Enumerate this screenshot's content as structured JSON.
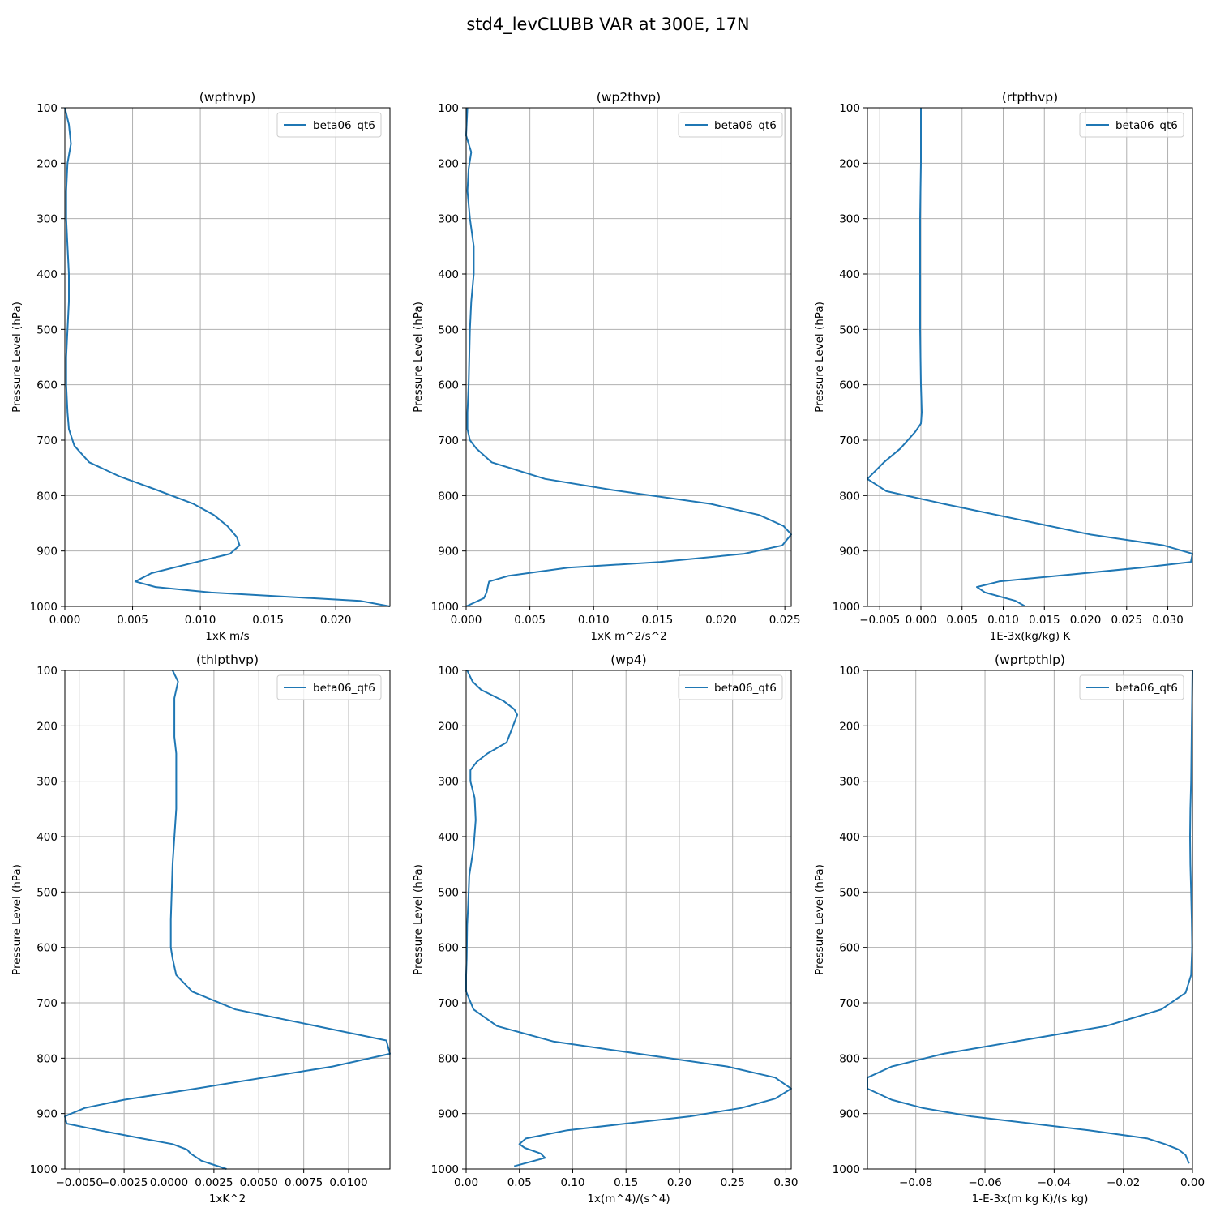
{
  "figure_title": "std4_levCLUBB VAR at 300E, 17N",
  "series_color": "#1f77b4",
  "chart_data": [
    {
      "type": "line",
      "title": "(wpthvp)",
      "xlabel": "1xK m/s",
      "ylabel": "Pressure Level (hPa)",
      "legend": "beta06_qt6",
      "legend_loc": "upper right",
      "grid": true,
      "xlim": [
        0,
        0.024
      ],
      "ylim": [
        1000,
        100
      ],
      "xticks": [
        0,
        0.005,
        0.01,
        0.015,
        0.02
      ],
      "xtick_labels": [
        "0.000",
        "0.005",
        "0.010",
        "0.015",
        "0.020"
      ],
      "yticks": [
        100,
        200,
        300,
        400,
        500,
        600,
        700,
        800,
        900,
        1000
      ],
      "ytick_labels": [
        "100",
        "200",
        "300",
        "400",
        "500",
        "600",
        "700",
        "800",
        "900",
        "1000"
      ],
      "x": [
        0.0,
        0.0003,
        0.00045,
        0.0002,
        0.0001,
        0.0001,
        0.0002,
        0.0003,
        0.0003,
        0.0002,
        0.0001,
        0.0001,
        0.0002,
        0.0003,
        0.0007,
        0.0018,
        0.004,
        0.0068,
        0.0095,
        0.011,
        0.012,
        0.0127,
        0.0129,
        0.0122,
        0.0097,
        0.0064,
        0.0052,
        0.0067,
        0.0108,
        0.0218,
        0.024
      ],
      "y": [
        100,
        130,
        165,
        200,
        250,
        300,
        350,
        400,
        450,
        500,
        550,
        600,
        650,
        680,
        710,
        740,
        765,
        790,
        815,
        835,
        855,
        875,
        890,
        905,
        920,
        940,
        955,
        965,
        975,
        990,
        1000
      ]
    },
    {
      "type": "line",
      "title": "(wp2thvp)",
      "xlabel": "1xK m^2/s^2",
      "ylabel": "Pressure Level (hPa)",
      "legend": "beta06_qt6",
      "legend_loc": "upper right",
      "grid": true,
      "xlim": [
        0,
        0.0255
      ],
      "ylim": [
        1000,
        100
      ],
      "xticks": [
        0,
        0.005,
        0.01,
        0.015,
        0.02,
        0.025
      ],
      "xtick_labels": [
        "0.000",
        "0.005",
        "0.010",
        "0.015",
        "0.020",
        "0.025"
      ],
      "yticks": [
        100,
        200,
        300,
        400,
        500,
        600,
        700,
        800,
        900,
        1000
      ],
      "ytick_labels": [
        "100",
        "200",
        "300",
        "400",
        "500",
        "600",
        "700",
        "800",
        "900",
        "1000"
      ],
      "x": [
        0.0001,
        0.0,
        0.0004,
        0.0002,
        0.0001,
        0.0003,
        0.0006,
        0.0006,
        0.0004,
        0.0003,
        0.0002,
        0.0001,
        0.0001,
        0.0003,
        0.0008,
        0.002,
        0.0062,
        0.0115,
        0.0192,
        0.023,
        0.0249,
        0.0255,
        0.0248,
        0.0218,
        0.0152,
        0.008,
        0.0033,
        0.0018,
        0.0017,
        0.0016,
        0.0014,
        0.0
      ],
      "y": [
        100,
        150,
        180,
        210,
        250,
        300,
        350,
        400,
        450,
        500,
        600,
        650,
        680,
        700,
        715,
        740,
        770,
        790,
        815,
        835,
        855,
        870,
        890,
        905,
        920,
        930,
        945,
        955,
        965,
        975,
        985,
        1000
      ]
    },
    {
      "type": "line",
      "title": "(rtpthvp)",
      "xlabel": "1E-3x(kg/kg) K",
      "ylabel": "Pressure Level (hPa)",
      "legend": "beta06_qt6",
      "legend_loc": "upper right",
      "grid": true,
      "xlim": [
        -0.0065,
        0.033
      ],
      "ylim": [
        1000,
        100
      ],
      "xticks": [
        -0.005,
        0,
        0.005,
        0.01,
        0.015,
        0.02,
        0.025,
        0.03
      ],
      "xtick_labels": [
        "−0.005",
        "0.000",
        "0.005",
        "0.010",
        "0.015",
        "0.020",
        "0.025",
        "0.030"
      ],
      "yticks": [
        100,
        200,
        300,
        400,
        500,
        600,
        700,
        800,
        900,
        1000
      ],
      "ytick_labels": [
        "100",
        "200",
        "300",
        "400",
        "500",
        "600",
        "700",
        "800",
        "900",
        "1000"
      ],
      "x": [
        0.0,
        0.0,
        -0.0001,
        -0.0001,
        -0.0001,
        0.0,
        0.0001,
        0.0,
        -0.0007,
        -0.0025,
        -0.0045,
        -0.0065,
        -0.0042,
        0.0028,
        0.0205,
        0.0295,
        0.033,
        0.0328,
        0.0268,
        0.0095,
        0.0068,
        0.0078,
        0.0115,
        0.0127
      ],
      "y": [
        100,
        200,
        300,
        400,
        500,
        600,
        650,
        670,
        685,
        715,
        740,
        770,
        792,
        815,
        870,
        890,
        905,
        920,
        930,
        955,
        965,
        975,
        990,
        1000
      ]
    },
    {
      "type": "line",
      "title": "(thlpthvp)",
      "xlabel": "1xK^2",
      "ylabel": "Pressure Level (hPa)",
      "legend": "beta06_qt6",
      "legend_loc": "upper right",
      "grid": true,
      "xlim": [
        -0.0058,
        0.0123
      ],
      "ylim": [
        1000,
        100
      ],
      "xticks": [
        -0.005,
        -0.0025,
        0,
        0.0025,
        0.005,
        0.0075,
        0.01
      ],
      "xtick_labels": [
        "−0.0050",
        "−0.0025",
        "0.0000",
        "0.0025",
        "0.0050",
        "0.0075",
        "0.0100"
      ],
      "yticks": [
        100,
        200,
        300,
        400,
        500,
        600,
        700,
        800,
        900,
        1000
      ],
      "ytick_labels": [
        "100",
        "200",
        "300",
        "400",
        "500",
        "600",
        "700",
        "800",
        "900",
        "1000"
      ],
      "x": [
        0.0002,
        0.0005,
        0.0003,
        0.0003,
        0.0003,
        0.0004,
        0.0004,
        0.0004,
        0.0002,
        0.0001,
        0.0001,
        0.0002,
        0.0004,
        0.0013,
        0.0037,
        0.0121,
        0.0123,
        0.0091,
        0.0015,
        -0.0025,
        -0.0047,
        -0.0058,
        -0.0057,
        -0.0039,
        -0.0015,
        0.0002,
        0.001,
        0.0012,
        0.0018,
        0.0032
      ],
      "y": [
        100,
        120,
        150,
        180,
        220,
        250,
        300,
        350,
        450,
        550,
        600,
        620,
        650,
        680,
        712,
        768,
        792,
        815,
        855,
        875,
        890,
        905,
        918,
        930,
        945,
        955,
        965,
        972,
        985,
        1000
      ]
    },
    {
      "type": "line",
      "title": "(wp4)",
      "xlabel": "1x(m^4)/(s^4)",
      "ylabel": "Pressure Level (hPa)",
      "legend": "beta06_qt6",
      "legend_loc": "upper right",
      "grid": true,
      "xlim": [
        0,
        0.305
      ],
      "ylim": [
        1000,
        100
      ],
      "xticks": [
        0,
        0.05,
        0.1,
        0.15,
        0.2,
        0.25,
        0.3
      ],
      "xtick_labels": [
        "0.00",
        "0.05",
        "0.10",
        "0.15",
        "0.20",
        "0.25",
        "0.30"
      ],
      "yticks": [
        100,
        200,
        300,
        400,
        500,
        600,
        700,
        800,
        900,
        1000
      ],
      "ytick_labels": [
        "100",
        "200",
        "300",
        "400",
        "500",
        "600",
        "700",
        "800",
        "900",
        "1000"
      ],
      "x": [
        0.001,
        0.006,
        0.014,
        0.035,
        0.045,
        0.048,
        0.045,
        0.038,
        0.02,
        0.01,
        0.004,
        0.004,
        0.008,
        0.009,
        0.007,
        0.003,
        0.002,
        0.001,
        0.0005,
        0.0,
        0.0,
        0.007,
        0.029,
        0.082,
        0.245,
        0.29,
        0.305,
        0.29,
        0.258,
        0.21,
        0.095,
        0.056,
        0.05,
        0.055,
        0.07,
        0.074,
        0.045
      ],
      "y": [
        100,
        120,
        135,
        155,
        170,
        180,
        195,
        230,
        250,
        265,
        280,
        300,
        330,
        370,
        420,
        470,
        520,
        560,
        620,
        650,
        680,
        712,
        742,
        770,
        815,
        835,
        855,
        873,
        890,
        905,
        930,
        945,
        955,
        962,
        972,
        980,
        995
      ]
    },
    {
      "type": "line",
      "title": "(wprtpthlp)",
      "xlabel": "1-E-3x(m kg K)/(s kg)",
      "ylabel": "Pressure Level (hPa)",
      "legend": "beta06_qt6",
      "legend_loc": "upper right",
      "grid": true,
      "xlim": [
        -0.094,
        0.0
      ],
      "ylim": [
        1000,
        100
      ],
      "xticks": [
        -0.08,
        -0.06,
        -0.04,
        -0.02,
        0
      ],
      "xtick_labels": [
        "−0.08",
        "−0.06",
        "−0.04",
        "−0.02",
        "0.00"
      ],
      "yticks": [
        100,
        200,
        300,
        400,
        500,
        600,
        700,
        800,
        900,
        1000
      ],
      "ytick_labels": [
        "100",
        "200",
        "300",
        "400",
        "500",
        "600",
        "700",
        "800",
        "900",
        "1000"
      ],
      "x": [
        0.0,
        -0.0002,
        -0.0004,
        -0.0006,
        -0.0007,
        -0.0006,
        -0.0004,
        -0.0002,
        -0.0001,
        -0.0004,
        -0.002,
        -0.009,
        -0.025,
        -0.072,
        -0.087,
        -0.094,
        -0.094,
        -0.087,
        -0.078,
        -0.064,
        -0.03,
        -0.013,
        -0.008,
        -0.004,
        -0.002,
        -0.001
      ],
      "y": [
        100,
        200,
        300,
        350,
        400,
        450,
        500,
        550,
        600,
        650,
        682,
        712,
        742,
        792,
        815,
        835,
        855,
        875,
        890,
        905,
        930,
        945,
        955,
        965,
        975,
        990
      ]
    }
  ]
}
